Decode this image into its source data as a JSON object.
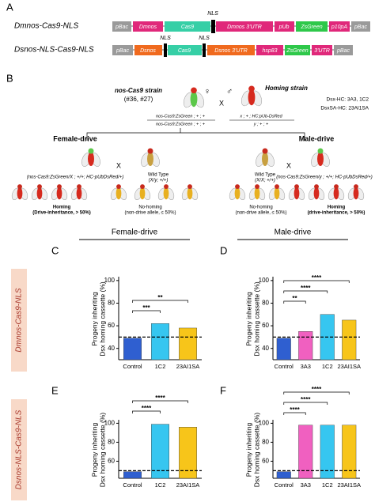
{
  "panel_labels": [
    "A",
    "B",
    "C",
    "D",
    "E",
    "F"
  ],
  "constructs": [
    {
      "name": "Dmnos-Cas9-NLS",
      "nls": [
        "NLS"
      ],
      "segments": [
        "pBac",
        "Dmnos",
        "Cas9",
        "Dmnos 3'UTR",
        "pUb",
        "ZsGreen",
        "p10pA",
        "pBac"
      ]
    },
    {
      "name": "Dsnos-NLS-Cas9-NLS",
      "nls": [
        "NLS",
        "NLS"
      ],
      "segments": [
        "pBac",
        "Dsnos",
        "Cas9",
        "Dsnos 3'UTR",
        "hsp83",
        "ZsGreen",
        "3'UTR",
        "pBac"
      ]
    }
  ],
  "cross": {
    "female_strain": "nos-Cas9 strain",
    "female_strain_ids": "(#36, #27)",
    "female_symbol": "♀",
    "cross_symbol": "X",
    "male_symbol": "♂",
    "male_strain": "Homing strain",
    "male_strain_lines": [
      "Dsx-HC: 3A3, 1C2",
      "DsxSA-HC: 23AI1SA"
    ],
    "female_genotype": [
      "nos-Cas9:ZsGreen ; + ; +",
      "nos-Cas9:ZsGreen ; + ; +"
    ],
    "male_genotype": [
      "x ; + ; HC:pUb-DsRed",
      "y ; + ; +"
    ],
    "female_drive": {
      "title": "Female-drive",
      "parent_a": "(nos-Cas9:ZsGreen/X ; +/+; HC-pUbDsRed/+)",
      "parent_b": [
        "Wild Type",
        "(X/y; +/+)"
      ],
      "homing": [
        "Homing",
        "(Drive-inheritance, > 50%)"
      ],
      "no_homing": [
        "No-homing",
        "(non-drive allele, ≤ 50%)"
      ]
    },
    "male_drive": {
      "title": "Male-drive",
      "parent_a": [
        "Wild Type",
        "(X/X; +/+)"
      ],
      "parent_b": "(nos-Cas9:ZsGreen/y ; +/+; HC-pUbDsRed/+)",
      "no_homing": [
        "No-homing",
        "(non-drive allele, ≤ 50%)"
      ],
      "homing": [
        "Homing",
        "(drive-inheritance, > 50%)"
      ]
    }
  },
  "drive_headers": [
    "Female-drive",
    "Male-drive"
  ],
  "row_labels": [
    "Dmnos-Cas9-NLS",
    "Dsnos-NLS-Cas9-NLS"
  ],
  "chart_data": [
    {
      "type": "bar",
      "ylabel": [
        "Progeny inheriting",
        "Dsx homing cassette (%)"
      ],
      "categories": [
        "Control",
        "1C2",
        "23AI1SA"
      ],
      "values": [
        49,
        62,
        58
      ],
      "colors": [
        "#2f5fd0",
        "#36c6f0",
        "#f7c51a"
      ],
      "ylim": [
        30,
        102
      ],
      "yticks": [
        40,
        60,
        80,
        100
      ],
      "ref_line": 50,
      "annotations": [
        "***",
        "**"
      ]
    },
    {
      "type": "bar",
      "ylabel": [
        "Progeny inheriting",
        "Dsx homing cassette (%)"
      ],
      "categories": [
        "Control",
        "3A3",
        "1C2",
        "23AI1SA"
      ],
      "values": [
        49,
        55,
        70,
        65
      ],
      "colors": [
        "#2f5fd0",
        "#f060c0",
        "#36c6f0",
        "#f7c51a"
      ],
      "ylim": [
        30,
        102
      ],
      "yticks": [
        40,
        60,
        80,
        100
      ],
      "ref_line": 50,
      "annotations": [
        "**",
        "****",
        "****"
      ]
    },
    {
      "type": "bar",
      "ylabel": [
        "Progeny inheriting",
        "Dsx homing cassette (%)"
      ],
      "categories": [
        "Control",
        "1C2",
        "23AI1SA"
      ],
      "values": [
        49,
        99,
        96
      ],
      "colors": [
        "#2f5fd0",
        "#36c6f0",
        "#f7c51a"
      ],
      "ylim": [
        42,
        102
      ],
      "yticks": [
        60,
        80,
        100
      ],
      "ref_line": 50,
      "annotations": [
        "****",
        "****"
      ]
    },
    {
      "type": "bar",
      "ylabel": [
        "Progeny inheriting",
        "Dsx homing cassette (%)"
      ],
      "categories": [
        "Control",
        "3A3",
        "1C2",
        "23AI1SA"
      ],
      "values": [
        49,
        98,
        98,
        98
      ],
      "colors": [
        "#2f5fd0",
        "#f060c0",
        "#36c6f0",
        "#f7c51a"
      ],
      "ylim": [
        42,
        102
      ],
      "yticks": [
        60,
        80,
        100
      ],
      "ref_line": 50,
      "annotations": [
        "****",
        "****",
        "****"
      ]
    }
  ]
}
